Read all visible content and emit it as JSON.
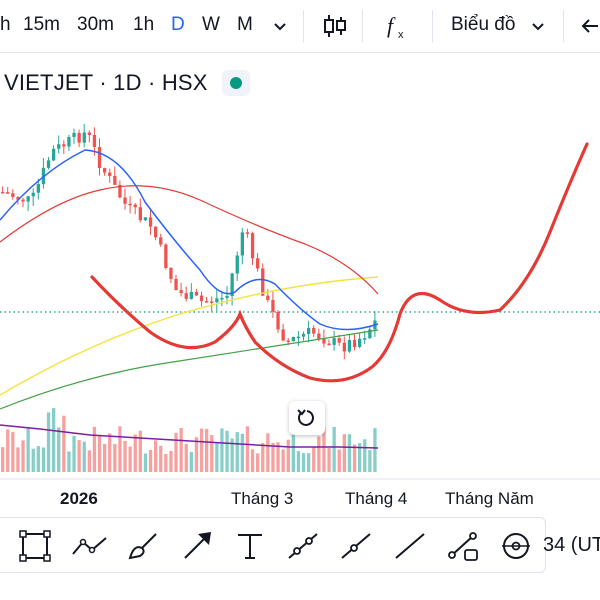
{
  "toolbar": {
    "timeframes": [
      "h",
      "15m",
      "30m",
      "1h",
      "D",
      "W",
      "M"
    ],
    "active_timeframe": "D",
    "chart_type_label": "Biểu đồ"
  },
  "symbol": {
    "text": "VIETJET · 1D · HSX",
    "status_color": "#089981"
  },
  "time_axis": {
    "labels": [
      "2026",
      "Tháng 3",
      "Tháng 4",
      "Tháng Năm"
    ]
  },
  "bottom_toolbar": {
    "tools": [
      "rectangle-tool",
      "path-tool",
      "brush-tool",
      "arrow-tool",
      "text-tool",
      "trend-line-tool",
      "ray-tool",
      "extended-line-tool",
      "info-line-tool",
      "circle-tool"
    ],
    "timezone_fragment": "34 (UT"
  },
  "colors": {
    "up": "#26a69a",
    "down": "#ef5350",
    "ma_fast": "#2962ff",
    "ma_mid": "#e53935",
    "ma_slow": "#f5e33a",
    "ma_long": "#43a047",
    "volume_ma": "#7b1fa2",
    "annotation": "#e53935"
  }
}
